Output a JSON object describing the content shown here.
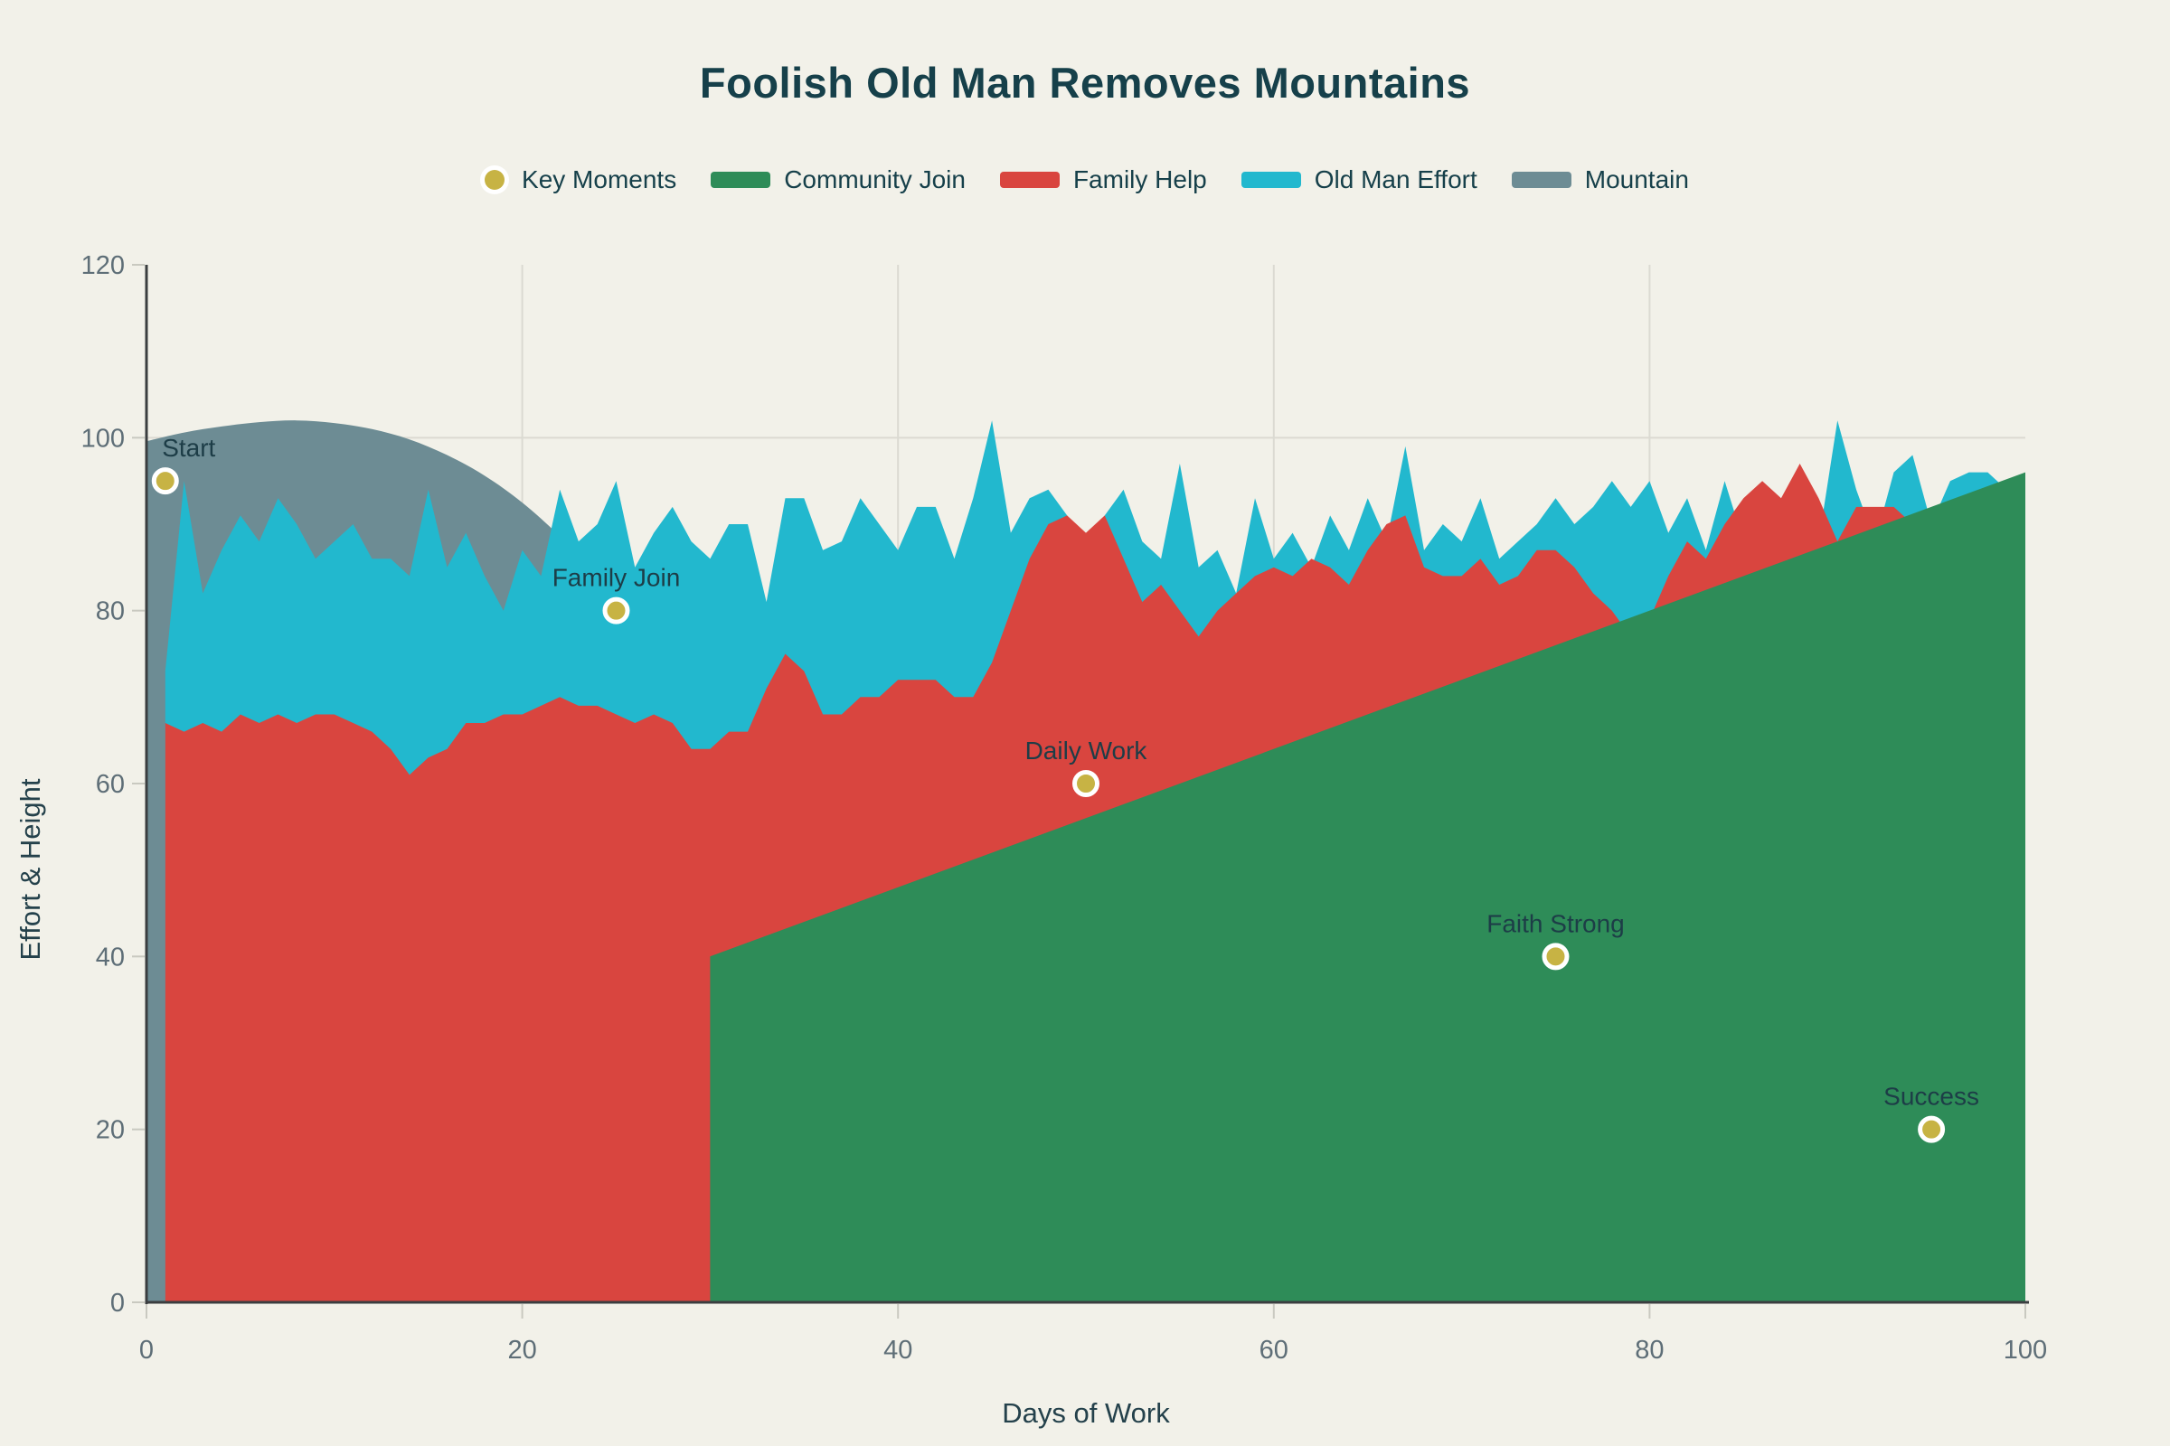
{
  "title": "Foolish Old Man Removes Mountains",
  "colors": {
    "background": "#F2F1E9",
    "title_text": "#16404A",
    "annotation_text": "#1D3D47",
    "tick_text": "#5E6E77",
    "axis_title_text": "#24414B",
    "grid": "#DBDAD2",
    "axis_line": "#3B3E40",
    "tick_mark": "#C9C9C0",
    "mountain": "#6D8C94",
    "old_man_effort": "#22B8CE",
    "family_help": "#D9453F",
    "community_join": "#2E8C58",
    "key_moments": "#C7B344",
    "marker_ring": "#FFFFFF"
  },
  "legend": {
    "items": [
      {
        "label": "Key Moments",
        "color": "#C7B344",
        "swatch": "dot"
      },
      {
        "label": "Community Join",
        "color": "#2E8C58",
        "swatch": "rect"
      },
      {
        "label": "Family Help",
        "color": "#D9453F",
        "swatch": "rect"
      },
      {
        "label": "Old Man Effort",
        "color": "#22B8CE",
        "swatch": "rect"
      },
      {
        "label": "Mountain",
        "color": "#6D8C94",
        "swatch": "rect"
      }
    ]
  },
  "axes": {
    "x": {
      "title": "Days of Work",
      "ticks": [
        0,
        20,
        40,
        60,
        80,
        100
      ],
      "range": [
        0,
        100
      ],
      "gridlines": [
        20,
        40,
        60,
        80
      ]
    },
    "y": {
      "title": "Effort & Height",
      "ticks": [
        0,
        20,
        40,
        60,
        80,
        100,
        120
      ],
      "range": [
        0,
        120
      ],
      "gridlines": [
        20,
        40,
        60,
        80,
        100
      ]
    }
  },
  "chart_data": {
    "type": "area",
    "xlabel": "Days of Work",
    "ylabel": "Effort & Height",
    "xlim": [
      0,
      100
    ],
    "ylim": [
      0,
      120
    ],
    "grid": true,
    "legend_position": "top-center",
    "series": [
      {
        "name": "Mountain",
        "type": "area",
        "color": "#6D8C94",
        "smooth": true,
        "points": [
          [
            0,
            99.6
          ],
          [
            2,
            100.6
          ],
          [
            4,
            101.3
          ],
          [
            6,
            101.8
          ],
          [
            8,
            102
          ],
          [
            10,
            101.7
          ],
          [
            12,
            101
          ],
          [
            14,
            99.8
          ],
          [
            16,
            98
          ],
          [
            18,
            95.6
          ],
          [
            20,
            92.5
          ],
          [
            22,
            88.6
          ],
          [
            24,
            84
          ],
          [
            26,
            78.4
          ],
          [
            28,
            71.6
          ],
          [
            30,
            63.6
          ],
          [
            32,
            54
          ],
          [
            34,
            42
          ],
          [
            36,
            28
          ],
          [
            38,
            13
          ],
          [
            39,
            0
          ]
        ]
      },
      {
        "name": "Old Man Effort",
        "type": "area",
        "color": "#22B8CE",
        "smooth": false,
        "x_start": 1,
        "x_step": 1,
        "values": [
          73,
          95,
          82,
          87,
          91,
          88,
          93,
          90,
          86,
          88,
          90,
          86,
          86,
          84,
          94,
          85,
          89,
          84,
          80,
          87,
          84,
          94,
          88,
          90,
          95,
          85,
          89,
          92,
          88,
          86,
          90,
          90,
          81,
          93,
          93,
          87,
          88,
          93,
          90,
          87,
          92,
          92,
          86,
          93,
          102,
          89,
          93,
          94,
          91,
          88,
          91,
          94,
          88,
          86,
          97,
          85,
          87,
          82,
          93,
          86,
          89,
          85,
          91,
          87,
          93,
          88,
          99,
          87,
          90,
          88,
          93,
          86,
          88,
          90,
          93,
          90,
          92,
          95,
          92,
          95,
          89,
          93,
          87,
          95,
          88,
          91,
          86,
          90,
          88,
          102,
          94,
          88,
          96,
          98,
          90,
          95,
          96,
          96,
          94,
          95
        ]
      },
      {
        "name": "Family Help",
        "type": "area",
        "color": "#D9453F",
        "smooth": false,
        "x_start": 1,
        "x_step": 1,
        "values": [
          67,
          66,
          67,
          66,
          68,
          67,
          68,
          67,
          68,
          68,
          67,
          66,
          64,
          61,
          63,
          64,
          67,
          67,
          68,
          68,
          69,
          70,
          69,
          69,
          68,
          67,
          68,
          67,
          64,
          64,
          66,
          66,
          71,
          75,
          73,
          68,
          68,
          70,
          70,
          72,
          72,
          72,
          70,
          70,
          74,
          80,
          86,
          90,
          91,
          89,
          91,
          86,
          81,
          83,
          80,
          77,
          80,
          82,
          84,
          85,
          84,
          86,
          85,
          83,
          87,
          90,
          91,
          85,
          84,
          84,
          86,
          83,
          84,
          87,
          87,
          85,
          82,
          80,
          77,
          79,
          84,
          88,
          86,
          90,
          93,
          95,
          93,
          97,
          93,
          88,
          92,
          92,
          92,
          90,
          91,
          90,
          91,
          90,
          89,
          91
        ]
      },
      {
        "name": "Community Join",
        "type": "area",
        "color": "#2E8C58",
        "smooth": false,
        "vertical_left_edge": true,
        "points": [
          [
            30,
            40
          ],
          [
            100,
            96
          ]
        ]
      },
      {
        "name": "Key Moments",
        "type": "scatter",
        "color": "#C7B344",
        "points": [
          [
            1,
            95
          ],
          [
            25,
            80
          ],
          [
            50,
            60
          ],
          [
            75,
            40
          ],
          [
            95,
            20
          ]
        ],
        "labels": [
          "Start",
          "Family Join",
          "Daily Work",
          "Faith Strong",
          "Success"
        ],
        "label_dx": [
          26,
          0,
          0,
          0,
          0
        ]
      }
    ]
  }
}
